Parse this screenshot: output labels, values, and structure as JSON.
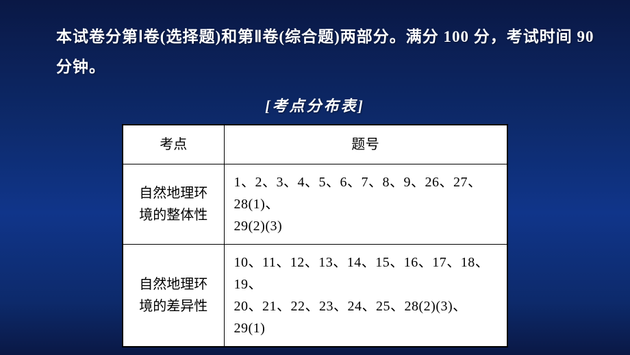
{
  "intro": {
    "text": "本试卷分第Ⅰ卷(选择题)和第Ⅱ卷(综合题)两部分。满分 100 分，考试时间 90 分钟。"
  },
  "table": {
    "title": "[考点分布表]",
    "headers": {
      "col1": "考点",
      "col2": "题号"
    },
    "rows": [
      {
        "topic_line1": "自然地理环",
        "topic_line2": "境的整体性",
        "numbers_line1": "1、2、3、4、5、6、7、8、9、26、27、28(1)、",
        "numbers_line2": "29(2)(3)"
      },
      {
        "topic_line1": "自然地理环",
        "topic_line2": "境的差异性",
        "numbers_line1": "10、11、12、13、14、15、16、17、18、19、",
        "numbers_line2": "20、21、22、23、24、25、28(2)(3)、29(1)"
      }
    ]
  },
  "style": {
    "background_gradient": [
      "#0a1845",
      "#0d2a6b",
      "#10358a"
    ],
    "text_color": "#ffffff",
    "table_bg": "#ffffff",
    "table_border": "#000000",
    "table_text": "#000000",
    "intro_fontsize": 23,
    "title_fontsize": 22,
    "cell_fontsize": 20
  }
}
